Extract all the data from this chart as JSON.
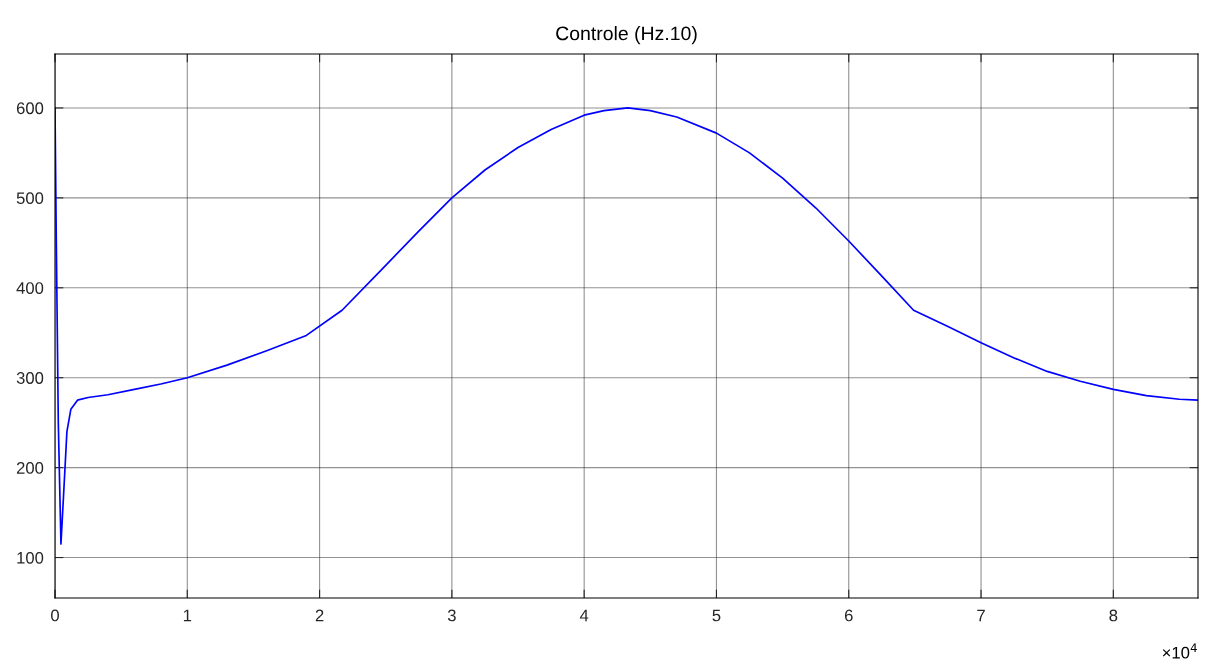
{
  "chart_data": {
    "type": "line",
    "title": "Controle (Hz.10)",
    "series": [
      {
        "color": "#0000ff",
        "x": [
          0,
          0.01,
          0.025,
          0.045,
          0.065,
          0.09,
          0.12,
          0.17,
          0.25,
          0.4,
          0.6,
          0.8,
          1.0,
          1.3,
          1.6,
          1.9,
          2.17,
          2.5,
          2.75,
          3.0,
          3.25,
          3.5,
          3.75,
          4.0,
          4.15,
          4.33,
          4.5,
          4.7,
          5.0,
          5.25,
          5.5,
          5.75,
          6.0,
          6.25,
          6.49,
          6.75,
          7.0,
          7.25,
          7.5,
          7.75,
          8.0,
          8.25,
          8.5,
          8.64
        ],
        "values": [
          600,
          450,
          250,
          115,
          170,
          240,
          265,
          275,
          278,
          281,
          287,
          293,
          300,
          314,
          330,
          347,
          375,
          425,
          463,
          500,
          531,
          556,
          576,
          592,
          597,
          600,
          597,
          590,
          572,
          550,
          522,
          489,
          452,
          413,
          375,
          357,
          339,
          322,
          307,
          296,
          287,
          280,
          276,
          275
        ]
      }
    ],
    "xlim": [
      0,
      8.64
    ],
    "xticks": [
      0,
      1,
      2,
      3,
      4,
      5,
      6,
      7,
      8
    ],
    "ylim": [
      55,
      660
    ],
    "yticks": [
      100,
      200,
      300,
      400,
      500,
      600
    ],
    "annotations": [
      "×10$^{4}$"
    ],
    "grid": true,
    "marker": "none",
    "line_style": "solid"
  }
}
